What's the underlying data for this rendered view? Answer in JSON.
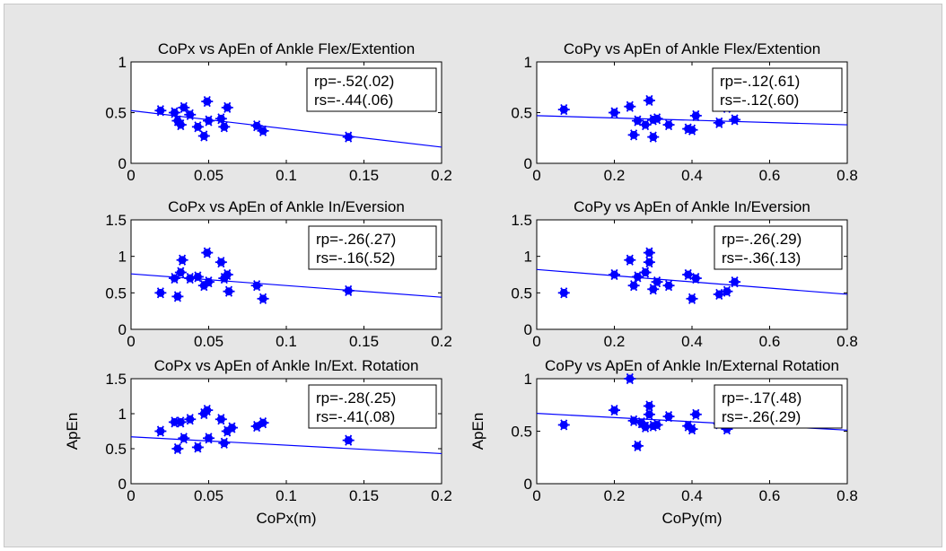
{
  "figure": {
    "background": "#e6e6e6",
    "marker_color": "#0000ff",
    "line_color": "#0000ff"
  },
  "chart_data": [
    {
      "type": "scatter",
      "title": "CoPx vs ApEn of Ankle Flex/Extention",
      "xlabel": "",
      "ylabel": "",
      "xlim": [
        0,
        0.2
      ],
      "ylim": [
        0,
        1
      ],
      "xticks": [
        "0",
        "0.05",
        "0.1",
        "0.15",
        "0.2"
      ],
      "yticks": [
        "0",
        "0.5",
        "1"
      ],
      "annotations": [
        "rp=-.52(.02)",
        "rs=-.44(.06)"
      ],
      "x": [
        0.019,
        0.028,
        0.03,
        0.032,
        0.034,
        0.038,
        0.043,
        0.047,
        0.049,
        0.05,
        0.058,
        0.06,
        0.062,
        0.081,
        0.085,
        0.14
      ],
      "y": [
        0.52,
        0.5,
        0.42,
        0.38,
        0.55,
        0.48,
        0.36,
        0.27,
        0.61,
        0.42,
        0.44,
        0.36,
        0.55,
        0.37,
        0.32,
        0.26
      ],
      "fit_line": {
        "x": [
          0,
          0.2
        ],
        "y": [
          0.52,
          0.16
        ]
      }
    },
    {
      "type": "scatter",
      "title": "CoPy vs ApEn of Ankle Flex/Extention",
      "xlabel": "",
      "ylabel": "",
      "xlim": [
        0,
        0.8
      ],
      "ylim": [
        0,
        1
      ],
      "xticks": [
        "0",
        "0.2",
        "0.4",
        "0.6",
        "0.8"
      ],
      "yticks": [
        "0",
        "0.5",
        "1"
      ],
      "annotations": [
        "rp=-.12(.61)",
        "rs=-.12(.60)"
      ],
      "x": [
        0.07,
        0.2,
        0.24,
        0.25,
        0.26,
        0.28,
        0.29,
        0.3,
        0.3,
        0.31,
        0.34,
        0.39,
        0.4,
        0.41,
        0.47,
        0.49,
        0.51
      ],
      "y": [
        0.53,
        0.5,
        0.56,
        0.28,
        0.42,
        0.38,
        0.62,
        0.43,
        0.26,
        0.44,
        0.38,
        0.34,
        0.33,
        0.47,
        0.4,
        0.55,
        0.43
      ],
      "fit_line": {
        "x": [
          0,
          0.8
        ],
        "y": [
          0.47,
          0.38
        ]
      }
    },
    {
      "type": "scatter",
      "title": "CoPx vs ApEn of Ankle In/Eversion",
      "xlabel": "",
      "ylabel": "",
      "xlim": [
        0,
        0.2
      ],
      "ylim": [
        0,
        1.5
      ],
      "xticks": [
        "0",
        "0.05",
        "0.1",
        "0.15",
        "0.2"
      ],
      "yticks": [
        "0",
        "0.5",
        "1",
        "1.5"
      ],
      "annotations": [
        "rp=-.26(.27)",
        "rs=-.16(.52)"
      ],
      "x": [
        0.019,
        0.028,
        0.03,
        0.032,
        0.033,
        0.038,
        0.043,
        0.047,
        0.049,
        0.05,
        0.058,
        0.06,
        0.062,
        0.063,
        0.081,
        0.085,
        0.14
      ],
      "y": [
        0.5,
        0.7,
        0.45,
        0.78,
        0.95,
        0.7,
        0.72,
        0.6,
        1.05,
        0.65,
        0.92,
        0.7,
        0.75,
        0.52,
        0.6,
        0.42,
        0.53
      ],
      "fit_line": {
        "x": [
          0,
          0.2
        ],
        "y": [
          0.76,
          0.44
        ]
      }
    },
    {
      "type": "scatter",
      "title": "CoPy vs ApEn of Ankle In/Eversion",
      "xlabel": "",
      "ylabel": "",
      "xlim": [
        0,
        0.8
      ],
      "ylim": [
        0,
        1.5
      ],
      "xticks": [
        "0",
        "0.2",
        "0.4",
        "0.6",
        "0.8"
      ],
      "yticks": [
        "0",
        "0.5",
        "1",
        "1.5"
      ],
      "annotations": [
        "rp=-.26(.29)",
        "rs=-.36(.13)"
      ],
      "x": [
        0.07,
        0.2,
        0.24,
        0.25,
        0.26,
        0.28,
        0.29,
        0.29,
        0.3,
        0.31,
        0.34,
        0.39,
        0.4,
        0.41,
        0.47,
        0.49,
        0.51
      ],
      "y": [
        0.5,
        0.75,
        0.95,
        0.6,
        0.72,
        0.78,
        1.05,
        0.92,
        0.55,
        0.65,
        0.6,
        0.75,
        0.42,
        0.7,
        0.48,
        0.52,
        0.65
      ],
      "fit_line": {
        "x": [
          0,
          0.8
        ],
        "y": [
          0.82,
          0.48
        ]
      }
    },
    {
      "type": "scatter",
      "title": "CoPx vs ApEn of Ankle In/Ext. Rotation",
      "xlabel": "CoPx(m)",
      "ylabel": "ApEn",
      "xlim": [
        0,
        0.2
      ],
      "ylim": [
        0,
        1.5
      ],
      "xticks": [
        "0",
        "0.05",
        "0.1",
        "0.15",
        "0.2"
      ],
      "yticks": [
        "0",
        "0.5",
        "1",
        "1.5"
      ],
      "annotations": [
        "rp=-.28(.25)",
        "rs=-.41(.08)"
      ],
      "x": [
        0.019,
        0.028,
        0.03,
        0.032,
        0.034,
        0.038,
        0.043,
        0.047,
        0.049,
        0.05,
        0.058,
        0.06,
        0.062,
        0.065,
        0.081,
        0.085,
        0.14
      ],
      "y": [
        0.75,
        0.88,
        0.5,
        0.88,
        0.65,
        0.92,
        0.52,
        1.0,
        1.05,
        0.65,
        0.92,
        0.58,
        0.75,
        0.8,
        0.82,
        0.87,
        0.62
      ],
      "fit_line": {
        "x": [
          0,
          0.2
        ],
        "y": [
          0.67,
          0.43
        ]
      }
    },
    {
      "type": "scatter",
      "title": "CoPy vs ApEn of Ankle In/External Rotation",
      "xlabel": "CoPy(m)",
      "ylabel": "ApEn",
      "xlim": [
        0,
        0.8
      ],
      "ylim": [
        0,
        1
      ],
      "xticks": [
        "0",
        "0.2",
        "0.4",
        "0.6",
        "0.8"
      ],
      "yticks": [
        "0",
        "0.5",
        "1"
      ],
      "annotations": [
        "rp=-.17(.48)",
        "rs=-.26(.29)"
      ],
      "x": [
        0.07,
        0.2,
        0.24,
        0.25,
        0.26,
        0.27,
        0.28,
        0.29,
        0.29,
        0.3,
        0.31,
        0.34,
        0.39,
        0.4,
        0.41,
        0.47,
        0.49,
        0.51
      ],
      "y": [
        0.56,
        0.7,
        1.0,
        0.6,
        0.36,
        0.58,
        0.54,
        0.74,
        0.66,
        0.55,
        0.56,
        0.64,
        0.55,
        0.52,
        0.66,
        0.57,
        0.52,
        0.6
      ],
      "fit_line": {
        "x": [
          0,
          0.8
        ],
        "y": [
          0.67,
          0.51
        ]
      }
    }
  ]
}
